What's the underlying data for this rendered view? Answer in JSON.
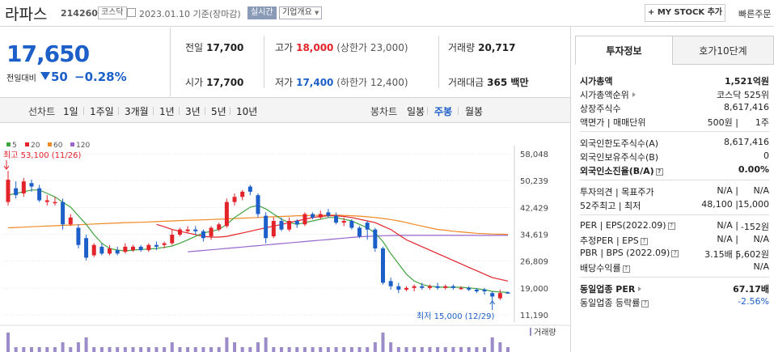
{
  "header": {
    "name": "라파스",
    "code": "214260",
    "market": "코스닥",
    "date": "2023.01.10 기준(장마감)",
    "live": "실시간",
    "corp_info": "기업개요",
    "mystock": "+ MY STOCK 추가",
    "quick_order": "빠른주문"
  },
  "price": {
    "current": "17,650",
    "change_label": "전일대비",
    "change": "50",
    "change_pct": "−0.28%",
    "down_color": "#1c5fc8",
    "up_color": "#e2232a"
  },
  "quote": {
    "prev_label": "전일",
    "prev": "17,700",
    "high_label": "고가",
    "high": "18,000",
    "upper_limit": "(상한가 23,000)",
    "volume_label": "거래량",
    "volume": "20,717",
    "open_label": "시가",
    "open": "17,700",
    "low_label": "저가",
    "low": "17,400",
    "lower_limit": "(하한가 12,400)",
    "amount_label": "거래대금",
    "amount": "365 백만"
  },
  "tabs": {
    "line_label": "선차트",
    "line": [
      "1일",
      "1주일",
      "3개월",
      "1년",
      "3년",
      "5년",
      "10년"
    ],
    "candle_label": "봉차트",
    "candle": [
      "일봉",
      "주봉",
      "월봉"
    ],
    "active_candle": "주봉"
  },
  "chart_data": {
    "type": "candlestick",
    "legend": [
      {
        "name": "5",
        "color": "#3fa33f"
      },
      {
        "name": "20",
        "color": "#e2232a"
      },
      {
        "name": "60",
        "color": "#f08a24"
      },
      {
        "name": "120",
        "color": "#9966cc"
      }
    ],
    "y_ticks": [
      "58,048",
      "50,239",
      "42,429",
      "34,619",
      "26,809",
      "19,000",
      "11,190"
    ],
    "ylim": [
      11190,
      58048
    ],
    "high_annotation": "최고 53,100 (11/26)",
    "low_annotation": "최저 15,000 (12/29)",
    "volume_label": "거래량",
    "candles": [
      {
        "o": 44000,
        "c": 50500,
        "h": 53100,
        "l": 43000
      },
      {
        "o": 48000,
        "c": 46000,
        "h": 50000,
        "l": 45000
      },
      {
        "o": 46500,
        "c": 50000,
        "h": 51000,
        "l": 45500
      },
      {
        "o": 49500,
        "c": 48500,
        "h": 50500,
        "l": 47000
      },
      {
        "o": 48000,
        "c": 44500,
        "h": 49000,
        "l": 44000
      },
      {
        "o": 44000,
        "c": 44500,
        "h": 46000,
        "l": 43000
      },
      {
        "o": 44000,
        "c": 44000,
        "h": 45500,
        "l": 43000
      },
      {
        "o": 44000,
        "c": 37500,
        "h": 45000,
        "l": 36000
      },
      {
        "o": 37500,
        "c": 39500,
        "h": 40500,
        "l": 37000
      },
      {
        "o": 36500,
        "c": 31500,
        "h": 37500,
        "l": 30500
      },
      {
        "o": 33500,
        "c": 27800,
        "h": 34500,
        "l": 27000
      },
      {
        "o": 28500,
        "c": 31500,
        "h": 32000,
        "l": 28000
      },
      {
        "o": 31000,
        "c": 29000,
        "h": 32000,
        "l": 28500
      },
      {
        "o": 29000,
        "c": 30500,
        "h": 31500,
        "l": 28500
      },
      {
        "o": 30000,
        "c": 29000,
        "h": 31000,
        "l": 28500
      },
      {
        "o": 29500,
        "c": 31000,
        "h": 32000,
        "l": 29000
      },
      {
        "o": 30000,
        "c": 31000,
        "h": 31500,
        "l": 29500
      },
      {
        "o": 31000,
        "c": 30000,
        "h": 31500,
        "l": 29500
      },
      {
        "o": 30000,
        "c": 31500,
        "h": 32000,
        "l": 29500
      },
      {
        "o": 31500,
        "c": 31000,
        "h": 32500,
        "l": 30000
      },
      {
        "o": 31500,
        "c": 32000,
        "h": 32500,
        "l": 30500
      },
      {
        "o": 32000,
        "c": 34500,
        "h": 36000,
        "l": 31500
      },
      {
        "o": 34500,
        "c": 36000,
        "h": 36500,
        "l": 34000
      },
      {
        "o": 35500,
        "c": 36000,
        "h": 37000,
        "l": 35000
      },
      {
        "o": 36000,
        "c": 35500,
        "h": 37000,
        "l": 34500
      },
      {
        "o": 35500,
        "c": 33500,
        "h": 36000,
        "l": 32500
      },
      {
        "o": 34000,
        "c": 36500,
        "h": 37000,
        "l": 33000
      },
      {
        "o": 36000,
        "c": 37500,
        "h": 38000,
        "l": 35500
      },
      {
        "o": 37000,
        "c": 44000,
        "h": 45000,
        "l": 36500
      },
      {
        "o": 44000,
        "c": 45500,
        "h": 46500,
        "l": 43000
      },
      {
        "o": 45500,
        "c": 47000,
        "h": 47500,
        "l": 44500
      },
      {
        "o": 48500,
        "c": 47000,
        "h": 49000,
        "l": 46000
      },
      {
        "o": 46000,
        "c": 40500,
        "h": 46500,
        "l": 39500
      },
      {
        "o": 40000,
        "c": 33500,
        "h": 41000,
        "l": 32000
      },
      {
        "o": 34000,
        "c": 38500,
        "h": 39500,
        "l": 33500
      },
      {
        "o": 38500,
        "c": 36000,
        "h": 39500,
        "l": 35500
      },
      {
        "o": 36000,
        "c": 38500,
        "h": 39500,
        "l": 35500
      },
      {
        "o": 38500,
        "c": 37500,
        "h": 39000,
        "l": 36500
      },
      {
        "o": 37500,
        "c": 40500,
        "h": 41000,
        "l": 37000
      },
      {
        "o": 40500,
        "c": 39500,
        "h": 41000,
        "l": 39000
      },
      {
        "o": 39500,
        "c": 40500,
        "h": 41500,
        "l": 39000
      },
      {
        "o": 41000,
        "c": 40000,
        "h": 42000,
        "l": 39500
      },
      {
        "o": 40000,
        "c": 38000,
        "h": 41000,
        "l": 37500
      },
      {
        "o": 38000,
        "c": 38500,
        "h": 39500,
        "l": 37000
      },
      {
        "o": 38500,
        "c": 36500,
        "h": 39000,
        "l": 36000
      },
      {
        "o": 36500,
        "c": 34000,
        "h": 37000,
        "l": 33500
      },
      {
        "o": 38000,
        "c": 36000,
        "h": 38500,
        "l": 33000
      },
      {
        "o": 36000,
        "c": 30500,
        "h": 36500,
        "l": 29500
      },
      {
        "o": 30500,
        "c": 20500,
        "h": 31000,
        "l": 20000
      },
      {
        "o": 21000,
        "c": 19500,
        "h": 22000,
        "l": 18500
      },
      {
        "o": 19500,
        "c": 18500,
        "h": 20500,
        "l": 17500
      },
      {
        "o": 18500,
        "c": 19000,
        "h": 19500,
        "l": 18000
      },
      {
        "o": 19000,
        "c": 19500,
        "h": 20000,
        "l": 18000
      },
      {
        "o": 19500,
        "c": 19000,
        "h": 20500,
        "l": 18500
      },
      {
        "o": 19000,
        "c": 19500,
        "h": 20000,
        "l": 18500
      },
      {
        "o": 19500,
        "c": 19000,
        "h": 20500,
        "l": 18500
      },
      {
        "o": 19000,
        "c": 19500,
        "h": 20000,
        "l": 18500
      },
      {
        "o": 19500,
        "c": 19000,
        "h": 20000,
        "l": 18500
      },
      {
        "o": 19000,
        "c": 19000,
        "h": 19500,
        "l": 18500
      },
      {
        "o": 19000,
        "c": 18500,
        "h": 19500,
        "l": 18000
      },
      {
        "o": 18500,
        "c": 18000,
        "h": 19000,
        "l": 17500
      },
      {
        "o": 18500,
        "c": 18000,
        "h": 19000,
        "l": 17000
      },
      {
        "o": 17500,
        "c": 16500,
        "h": 18000,
        "l": 15000
      },
      {
        "o": 16000,
        "c": 17500,
        "h": 18500,
        "l": 15500
      },
      {
        "o": 17700,
        "c": 17650,
        "h": 18000,
        "l": 17400
      }
    ],
    "ma5": [
      46000,
      46500,
      47000,
      47500,
      47500,
      46500,
      45500,
      44000,
      42500,
      40000,
      37500,
      34500,
      32000,
      30500,
      30000,
      29800,
      30000,
      30200,
      30300,
      30500,
      30800,
      31200,
      32000,
      33000,
      34000,
      35000,
      35500,
      36000,
      37500,
      39500,
      41000,
      42500,
      43000,
      42000,
      40500,
      39000,
      38000,
      37500,
      38000,
      38500,
      39000,
      39500,
      39500,
      39000,
      38500,
      37500,
      36500,
      35000,
      32500,
      29000,
      26000,
      23000,
      21000,
      20000,
      19500,
      19300,
      19200,
      19200,
      19200,
      19000,
      18800,
      18500,
      18000,
      17800,
      17700
    ],
    "ma20": [
      null,
      null,
      null,
      null,
      null,
      null,
      null,
      null,
      null,
      null,
      null,
      null,
      null,
      null,
      null,
      null,
      null,
      null,
      null,
      37500,
      36800,
      36000,
      35500,
      35000,
      34500,
      34000,
      33800,
      33800,
      34000,
      34500,
      35000,
      35500,
      36000,
      36500,
      37000,
      37500,
      38000,
      38500,
      39000,
      39500,
      39800,
      40000,
      40000,
      39800,
      39500,
      39000,
      38500,
      38000,
      37000,
      36000,
      34500,
      33000,
      32000,
      31000,
      30000,
      29000,
      28000,
      27000,
      26000,
      25000,
      24000,
      23000,
      22000,
      21500,
      21000
    ],
    "ma60": [
      null,
      null,
      null,
      null,
      null,
      null,
      null,
      null,
      null,
      null,
      null,
      null,
      null,
      null,
      null,
      null,
      null,
      null,
      null,
      null,
      null,
      null,
      null,
      null,
      null,
      null,
      null,
      null,
      null,
      null,
      null,
      null,
      null,
      null,
      null,
      null,
      null,
      null,
      null,
      null,
      null,
      null,
      null,
      null,
      null,
      null,
      null,
      null,
      null,
      null,
      null,
      null,
      null,
      null,
      null,
      null,
      null,
      null,
      null,
      35000,
      34900,
      34800,
      34700,
      34650,
      34600
    ],
    "ma60_full": [
      36500,
      36600,
      36700,
      36800,
      36900,
      37000,
      37100,
      37200,
      37300,
      37400,
      37500,
      37600,
      37700,
      37800,
      37900,
      38000,
      38050,
      38100,
      38200,
      38300,
      38400,
      38500,
      38600,
      38700,
      38750,
      38800,
      38900,
      39000,
      39100,
      39200,
      39300,
      39400,
      39500,
      39600,
      39700,
      39800,
      39900,
      40000,
      40000,
      40100,
      40100,
      40200,
      40200,
      40100,
      40000,
      39900,
      39700,
      39500,
      39200,
      38900,
      38500,
      38000,
      37500,
      37000,
      36500,
      36000,
      35800,
      35500,
      35300,
      35100,
      34900,
      34800,
      34700,
      34650,
      34600
    ],
    "ma120_full": [
      null,
      null,
      null,
      null,
      null,
      null,
      null,
      null,
      null,
      null,
      null,
      null,
      null,
      null,
      null,
      null,
      null,
      null,
      null,
      null,
      null,
      null,
      null,
      29500,
      29700,
      29900,
      30100,
      30300,
      30500,
      30700,
      30900,
      31100,
      31300,
      31500,
      31700,
      31900,
      32100,
      32300,
      32500,
      32700,
      32900,
      33100,
      33300,
      33500,
      33700,
      33900,
      34000,
      34100,
      34200,
      34250,
      34300,
      34300,
      34300,
      34300,
      34300,
      34300,
      34300,
      34300,
      34300,
      34300,
      34300,
      34300,
      34300,
      34300,
      34300
    ],
    "volume": [
      4,
      1,
      1,
      1,
      1,
      1,
      1,
      2,
      1,
      2,
      3,
      1,
      1,
      1,
      1,
      1,
      1,
      1,
      1,
      1,
      1,
      2,
      1,
      1,
      1,
      1,
      1,
      1,
      3,
      2,
      1,
      1,
      2,
      3,
      1,
      1,
      1,
      1,
      1,
      1,
      1,
      1,
      1,
      1,
      1,
      1,
      1,
      2,
      4,
      2,
      1,
      1,
      1,
      1,
      1,
      1,
      1,
      1,
      1,
      1,
      1,
      1,
      3,
      2,
      1
    ]
  },
  "panel": {
    "tab_on": "투자정보",
    "tab_off": "호가10단계",
    "rows1": [
      {
        "l": "시가총액",
        "r": "1,521억원",
        "bold": true
      },
      {
        "l": "시가총액순위",
        "r": "코스닥 525위",
        "tri": true
      },
      {
        "l": "상장주식수",
        "r": "8,617,416"
      },
      {
        "l": "액면가 | 매매단위",
        "r2": "500원",
        "r1": "1주"
      }
    ],
    "rows2": [
      {
        "l": "외국인한도주식수(A)",
        "r": "8,617,416"
      },
      {
        "l": "외국인보유주식수(B)",
        "r": "0"
      },
      {
        "l": "외국인소진율(B/A)",
        "r": "0.00%",
        "bold": true,
        "q": true
      }
    ],
    "rows3": [
      {
        "l": "투자의견 | 목표주가",
        "r2": "N/A",
        "r1": "N/A"
      },
      {
        "l": "52주최고 | 최저",
        "r2": "48,100",
        "r1": "15,000"
      }
    ],
    "rows4": [
      {
        "l": "PER | EPS(2022.09)",
        "r2": "N/A",
        "r1": "-152원",
        "q": true
      },
      {
        "l": "추정PER | EPS",
        "r2": "N/A",
        "r1": "N/A",
        "q": true
      },
      {
        "l": "PBR | BPS (2022.09)",
        "r2": "3.15배",
        "r1": "5,602원",
        "q": true
      },
      {
        "l": "배당수익률",
        "r": "N/A",
        "q": true
      }
    ],
    "rows5": [
      {
        "l": "동일업종 PER",
        "r": "67.17배",
        "bold": true,
        "tri": true
      },
      {
        "l": "동일업종 등락률",
        "r": "-2.56%",
        "q": true,
        "blue": true
      }
    ]
  }
}
